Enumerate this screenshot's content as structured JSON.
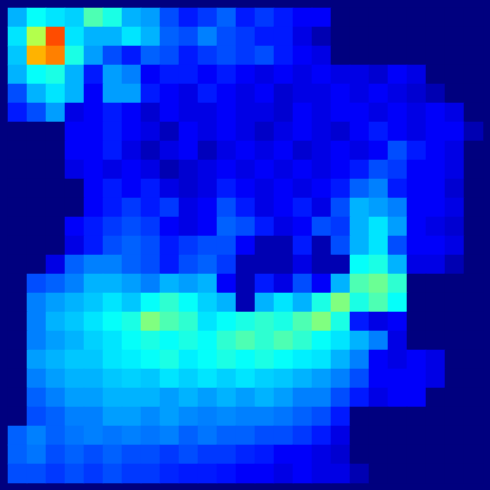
{
  "chart_data": {
    "type": "heatmap",
    "tick_labels": false,
    "zlim": [
      0,
      1
    ],
    "cells": [
      [
        0.3,
        0.38,
        0.35,
        0.33,
        0.45,
        0.4,
        0.3,
        0.28,
        0.2,
        0.15,
        0.18,
        0.22,
        0.15,
        0.18,
        0.15,
        0.12,
        0.12,
        0,
        0,
        0,
        0,
        0,
        0,
        0,
        0
      ],
      [
        0.35,
        0.55,
        0.8,
        0.35,
        0.3,
        0.3,
        0.35,
        0.3,
        0.22,
        0.2,
        0.25,
        0.2,
        0.18,
        0.15,
        0.15,
        0.1,
        0.05,
        0,
        0,
        0,
        0,
        0,
        0,
        0,
        0
      ],
      [
        0.32,
        0.7,
        0.75,
        0.4,
        0.28,
        0.2,
        0.15,
        0.22,
        0.2,
        0.15,
        0.18,
        0.2,
        0.18,
        0.2,
        0.15,
        0.12,
        0.1,
        0,
        0,
        0,
        0,
        0,
        0,
        0,
        0
      ],
      [
        0.3,
        0.38,
        0.4,
        0.3,
        0.15,
        0.28,
        0.25,
        0.12,
        0.15,
        0.15,
        0.12,
        0.15,
        0.12,
        0.1,
        0.12,
        0.1,
        0.12,
        0.1,
        0.1,
        0.08,
        0.12,
        0.1,
        0,
        0,
        0
      ],
      [
        0.2,
        0.3,
        0.35,
        0.3,
        0.12,
        0.28,
        0.28,
        0.15,
        0.12,
        0.1,
        0.15,
        0.12,
        0.1,
        0.12,
        0.08,
        0.1,
        0.1,
        0.12,
        0.1,
        0.12,
        0.1,
        0.08,
        0.05,
        0,
        0
      ],
      [
        0.15,
        0.2,
        0.28,
        0.1,
        0.12,
        0.15,
        0.12,
        0.08,
        0.12,
        0.1,
        0.1,
        0.12,
        0.1,
        0.1,
        0.08,
        0.12,
        0.1,
        0.12,
        0.12,
        0.1,
        0.12,
        0.1,
        0.12,
        0.1,
        0
      ],
      [
        0,
        0,
        0,
        0.12,
        0.12,
        0.15,
        0.12,
        0.1,
        0.06,
        0.12,
        0.1,
        0.12,
        0.1,
        0.07,
        0.1,
        0.12,
        0.1,
        0.08,
        0.12,
        0.15,
        0.12,
        0.1,
        0.12,
        0.12,
        0.05
      ],
      [
        0,
        0,
        0,
        0.12,
        0.12,
        0.15,
        0.1,
        0.06,
        0.1,
        0.12,
        0.06,
        0.1,
        0.12,
        0.1,
        0.12,
        0.08,
        0.1,
        0.12,
        0.1,
        0.12,
        0.2,
        0.15,
        0.12,
        0.1,
        0
      ],
      [
        0,
        0,
        0,
        0.1,
        0.12,
        0.1,
        0.12,
        0.1,
        0.05,
        0.08,
        0.1,
        0.12,
        0.1,
        0.12,
        0.1,
        0.12,
        0.1,
        0.12,
        0.15,
        0.2,
        0.18,
        0.12,
        0.12,
        0.1,
        0
      ],
      [
        0,
        0,
        0,
        0,
        0.12,
        0.15,
        0.12,
        0.15,
        0.1,
        0.08,
        0.1,
        0.15,
        0.12,
        0.1,
        0.12,
        0.1,
        0.12,
        0.15,
        0.22,
        0.25,
        0.15,
        0.12,
        0.12,
        0.08,
        0
      ],
      [
        0,
        0,
        0,
        0,
        0.12,
        0.15,
        0.18,
        0.15,
        0.18,
        0.1,
        0.12,
        0.2,
        0.15,
        0.1,
        0.12,
        0.15,
        0.1,
        0.2,
        0.3,
        0.28,
        0.25,
        0.12,
        0.12,
        0.1,
        0
      ],
      [
        0,
        0,
        0,
        0.12,
        0.15,
        0.18,
        0.2,
        0.18,
        0.12,
        0.1,
        0.12,
        0.22,
        0.2,
        0.15,
        0.1,
        0.12,
        0.2,
        0.18,
        0.3,
        0.35,
        0.28,
        0.12,
        0.1,
        0.08,
        0
      ],
      [
        0,
        0,
        0,
        0.1,
        0.15,
        0.2,
        0.22,
        0.2,
        0.15,
        0.18,
        0.2,
        0.2,
        0.12,
        0.05,
        0.05,
        0.15,
        0.05,
        0.2,
        0.3,
        0.35,
        0.2,
        0.12,
        0.12,
        0.1,
        0
      ],
      [
        0,
        0,
        0.1,
        0.22,
        0.25,
        0.25,
        0.22,
        0.2,
        0.15,
        0.2,
        0.22,
        0.18,
        0.05,
        0.05,
        0.05,
        0.1,
        0.05,
        0.05,
        0.38,
        0.4,
        0.3,
        0.1,
        0.1,
        0.05,
        0
      ],
      [
        0,
        0.2,
        0.22,
        0.25,
        0.3,
        0.3,
        0.28,
        0.25,
        0.3,
        0.28,
        0.3,
        0.12,
        0.05,
        0.15,
        0.1,
        0.2,
        0.12,
        0.3,
        0.45,
        0.48,
        0.42,
        0,
        0,
        0,
        0
      ],
      [
        0,
        0.25,
        0.28,
        0.3,
        0.32,
        0.35,
        0.32,
        0.38,
        0.42,
        0.38,
        0.33,
        0.3,
        0.05,
        0.3,
        0.35,
        0.3,
        0.4,
        0.5,
        0.4,
        0.45,
        0.38,
        0,
        0,
        0,
        0
      ],
      [
        0,
        0.25,
        0.3,
        0.32,
        0.35,
        0.38,
        0.4,
        0.5,
        0.45,
        0.42,
        0.35,
        0.38,
        0.4,
        0.42,
        0.4,
        0.45,
        0.5,
        0.4,
        0.15,
        0.1,
        0.12,
        0,
        0,
        0,
        0
      ],
      [
        0,
        0.25,
        0.28,
        0.3,
        0.33,
        0.35,
        0.38,
        0.4,
        0.38,
        0.4,
        0.38,
        0.42,
        0.45,
        0.42,
        0.45,
        0.42,
        0.38,
        0.35,
        0.3,
        0.25,
        0.1,
        0,
        0,
        0,
        0
      ],
      [
        0,
        0.28,
        0.3,
        0.32,
        0.32,
        0.35,
        0.36,
        0.38,
        0.4,
        0.36,
        0.38,
        0.4,
        0.38,
        0.4,
        0.38,
        0.36,
        0.35,
        0.3,
        0.25,
        0.12,
        0.1,
        0.12,
        0.1,
        0,
        0
      ],
      [
        0,
        0.25,
        0.28,
        0.3,
        0.3,
        0.32,
        0.33,
        0.32,
        0.35,
        0.33,
        0.35,
        0.33,
        0.35,
        0.33,
        0.32,
        0.3,
        0.28,
        0.25,
        0.2,
        0.12,
        0.12,
        0.12,
        0.1,
        0,
        0
      ],
      [
        0,
        0.22,
        0.25,
        0.28,
        0.28,
        0.3,
        0.3,
        0.3,
        0.28,
        0.3,
        0.28,
        0.3,
        0.28,
        0.3,
        0.28,
        0.25,
        0.25,
        0.2,
        0.15,
        0.1,
        0.12,
        0.12,
        0,
        0,
        0
      ],
      [
        0,
        0.2,
        0.22,
        0.25,
        0.25,
        0.28,
        0.28,
        0.26,
        0.28,
        0.26,
        0.25,
        0.26,
        0.25,
        0.25,
        0.24,
        0.22,
        0.2,
        0.15,
        0,
        0,
        0,
        0,
        0,
        0,
        0
      ],
      [
        0.22,
        0.25,
        0.22,
        0.24,
        0.25,
        0.24,
        0.25,
        0.24,
        0.25,
        0.22,
        0.24,
        0.22,
        0.22,
        0.2,
        0.2,
        0.18,
        0.15,
        0.1,
        0,
        0,
        0,
        0,
        0,
        0,
        0
      ],
      [
        0.22,
        0.24,
        0.2,
        0.22,
        0.2,
        0.22,
        0.2,
        0.2,
        0.18,
        0.2,
        0.18,
        0.18,
        0.16,
        0.15,
        0.12,
        0.12,
        0.1,
        0.08,
        0,
        0,
        0,
        0,
        0,
        0,
        0
      ],
      [
        0.2,
        0.2,
        0.18,
        0.2,
        0.18,
        0.2,
        0.18,
        0.18,
        0.16,
        0.15,
        0.15,
        0.14,
        0.12,
        0.12,
        0.1,
        0.12,
        0.1,
        0.1,
        0.05,
        0,
        0,
        0,
        0,
        0,
        0
      ]
    ]
  }
}
